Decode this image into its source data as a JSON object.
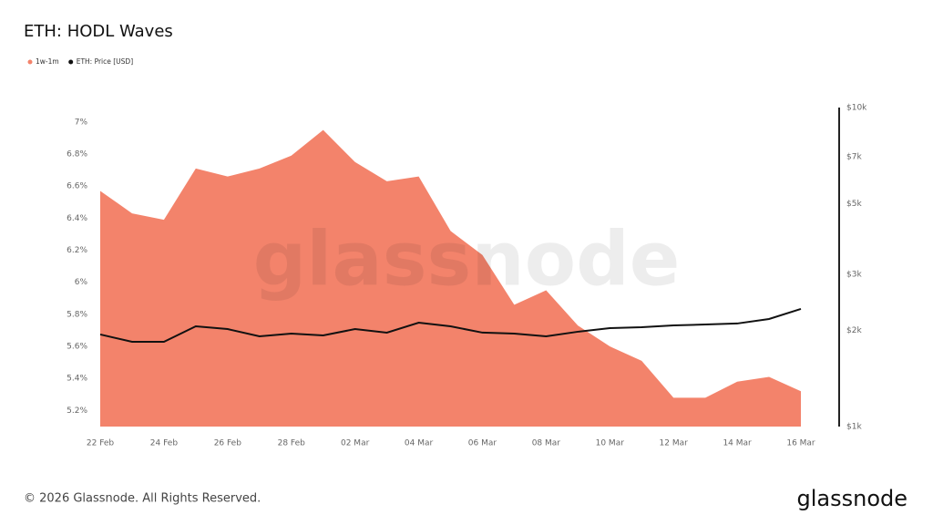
{
  "chart_data": {
    "type": "area",
    "title": "ETH: HODL Waves",
    "watermark": "glassnode",
    "categories": [
      "22 Feb",
      null,
      "24 Feb",
      null,
      "26 Feb",
      null,
      "28 Feb",
      null,
      "02 Mar",
      null,
      "04 Mar",
      null,
      "06 Mar",
      null,
      "08 Mar",
      null,
      "10 Mar",
      null,
      "12 Mar",
      null,
      "14 Mar",
      null,
      "16 Mar"
    ],
    "series": [
      {
        "name": "1w-1m",
        "type": "area",
        "color": "#f3836b",
        "values": [
          6.57,
          6.43,
          6.39,
          6.71,
          6.66,
          6.71,
          6.79,
          6.95,
          6.75,
          6.63,
          6.66,
          6.32,
          6.17,
          5.86,
          5.95,
          5.73,
          5.6,
          5.51,
          5.28,
          5.28,
          5.38,
          5.41,
          5.32
        ]
      },
      {
        "name": "ETH: Price [USD]",
        "type": "line",
        "axis": "y2",
        "color": "#111111",
        "values": [
          1944,
          1844,
          1844,
          2062,
          2021,
          1918,
          1956,
          1931,
          2021,
          1970,
          2117,
          2062,
          1970,
          1956,
          1918,
          1983,
          2035,
          2048,
          2075,
          2089,
          2104,
          2174,
          2337
        ]
      }
    ],
    "ylim": [
      5.1,
      7.09
    ],
    "yticks": [
      {
        "value": 5.2,
        "label": "5.2%"
      },
      {
        "value": 5.4,
        "label": "5.4%"
      },
      {
        "value": 5.6,
        "label": "5.6%"
      },
      {
        "value": 5.8,
        "label": "5.8%"
      },
      {
        "value": 6,
        "label": "6%"
      },
      {
        "value": 6.2,
        "label": "6.2%"
      },
      {
        "value": 6.4,
        "label": "6.4%"
      },
      {
        "value": 6.6,
        "label": "6.6%"
      },
      {
        "value": 6.8,
        "label": "6.8%"
      },
      {
        "value": 7,
        "label": "7%"
      }
    ],
    "y2lim": [
      1000,
      10000
    ],
    "y2scale": "log",
    "y2ticks": [
      {
        "value": 1000,
        "label": "$1k"
      },
      {
        "value": 2000,
        "label": "$2k"
      },
      {
        "value": 3000,
        "label": "$3k"
      },
      {
        "value": 5000,
        "label": "$5k"
      },
      {
        "value": 7000,
        "label": "$7k"
      },
      {
        "value": 10000,
        "label": "$10k"
      }
    ],
    "legend": "top-left"
  },
  "footer": {
    "copyright": "© 2026 Glassnode. All Rights Reserved.",
    "logo": "glassnode"
  }
}
